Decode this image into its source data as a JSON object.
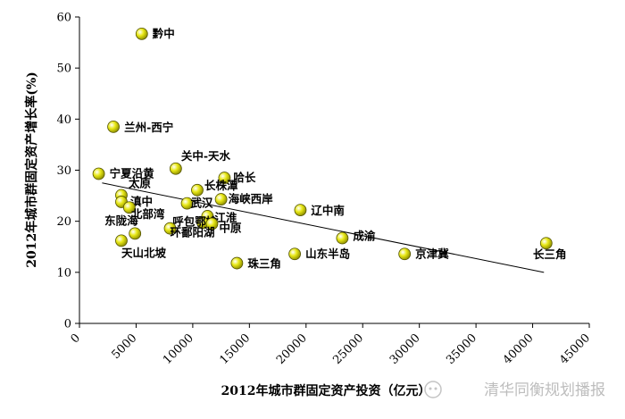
{
  "chart_data": {
    "type": "scatter",
    "xlabel": "2012年城市群固定资产投资（亿元）",
    "ylabel": "2012年城市群固定资产增长率(%)",
    "xlim": [
      0,
      45000
    ],
    "ylim": [
      0,
      60
    ],
    "x_ticks": [
      "0",
      "5000",
      "10000",
      "15000",
      "20000",
      "25000",
      "30000",
      "35000",
      "40000",
      "45000"
    ],
    "y_ticks": [
      "0",
      "10",
      "20",
      "30",
      "40",
      "50",
      "60"
    ],
    "grid": false,
    "trendline": {
      "from": [
        2000,
        27.5
      ],
      "to": [
        41000,
        10.0
      ]
    },
    "marker_color": "#e8e816",
    "points": [
      {
        "name": "黔中",
        "x": 5500,
        "y": 56.7
      },
      {
        "name": "兰州-西宁",
        "x": 3000,
        "y": 38.5
      },
      {
        "name": "宁夏沿黄",
        "x": 1700,
        "y": 29.3
      },
      {
        "name": "关中-天水",
        "x": 8500,
        "y": 30.3
      },
      {
        "name": "哈长",
        "x": 12800,
        "y": 28.5
      },
      {
        "name": "长株潭",
        "x": 10400,
        "y": 26.1
      },
      {
        "name": "海峡西岸",
        "x": 12500,
        "y": 24.3
      },
      {
        "name": "太原",
        "x": 3700,
        "y": 25.1
      },
      {
        "name": "滇中",
        "x": 3700,
        "y": 23.8
      },
      {
        "name": "北部湾",
        "x": 4400,
        "y": 22.7
      },
      {
        "name": "武汉",
        "x": 9500,
        "y": 23.5
      },
      {
        "name": "江淮",
        "x": 11300,
        "y": 21.0
      },
      {
        "name": "辽中南",
        "x": 19500,
        "y": 22.2
      },
      {
        "name": "呼包鄂榆",
        "x": 10900,
        "y": 19.7
      },
      {
        "name": "中原",
        "x": 11700,
        "y": 19.5
      },
      {
        "name": "东陇海",
        "x": 4900,
        "y": 17.6
      },
      {
        "name": "天山北坡",
        "x": 3700,
        "y": 16.2
      },
      {
        "name": "环鄱阳湖",
        "x": 8000,
        "y": 18.6
      },
      {
        "name": "成渝",
        "x": 23200,
        "y": 16.7
      },
      {
        "name": "山东半岛",
        "x": 19000,
        "y": 13.6
      },
      {
        "name": "京津冀",
        "x": 28700,
        "y": 13.6
      },
      {
        "name": "长三角",
        "x": 41200,
        "y": 15.7
      },
      {
        "name": "珠三角",
        "x": 13900,
        "y": 11.8
      }
    ]
  },
  "watermark": "清华同衡规划播报"
}
